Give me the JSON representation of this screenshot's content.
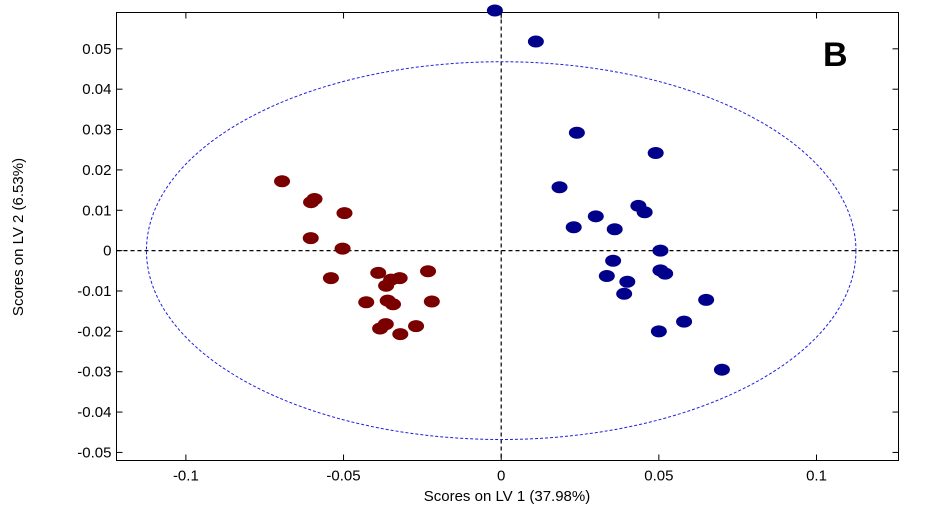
{
  "chart_data": {
    "type": "scatter",
    "xlabel": "Scores on LV 1 (37.98%)",
    "ylabel": "Scores on LV 2 (6.53%)",
    "panel_label": "B",
    "xlim": [
      -0.122,
      0.126
    ],
    "ylim": [
      -0.052,
      0.059
    ],
    "xticks": [
      -0.1,
      -0.05,
      0,
      0.05,
      0.1
    ],
    "xtick_labels": [
      "-0.1",
      "-0.05",
      "0",
      "0.05",
      "0.1"
    ],
    "yticks": [
      0.05,
      0.04,
      0.03,
      0.02,
      0.01,
      0,
      -0.01,
      -0.02,
      -0.03,
      -0.04,
      -0.05
    ],
    "ytick_labels": [
      "0.05",
      "0.04",
      "0.03",
      "0.02",
      "0.01",
      "0",
      "-0.01",
      "-0.02",
      "-0.03",
      "-0.04",
      "-0.05"
    ],
    "grid": false,
    "reference_lines": {
      "x": 0,
      "y": 0,
      "style": "dashed",
      "color": "#000000"
    },
    "confidence_ellipse": {
      "center": [
        0,
        0
      ],
      "rx": 0.1125,
      "ry": 0.0468,
      "color": "#1f1fe0",
      "style": "dashed"
    },
    "series": [
      {
        "color": "#7a0000",
        "points": [
          [
            -0.0695,
            0.0172
          ],
          [
            -0.0592,
            0.0128
          ],
          [
            -0.0603,
            0.012
          ],
          [
            -0.0604,
            0.0031
          ],
          [
            -0.0497,
            0.0093
          ],
          [
            -0.0503,
            0.0005
          ],
          [
            -0.054,
            -0.0068
          ],
          [
            -0.039,
            -0.0055
          ],
          [
            -0.0365,
            -0.0087
          ],
          [
            -0.0349,
            -0.0072
          ],
          [
            -0.0322,
            -0.0068
          ],
          [
            -0.0232,
            -0.0051
          ],
          [
            -0.0428,
            -0.0128
          ],
          [
            -0.036,
            -0.0124
          ],
          [
            -0.0343,
            -0.0133
          ],
          [
            -0.022,
            -0.0126
          ],
          [
            -0.0366,
            -0.0182
          ],
          [
            -0.0384,
            -0.0193
          ],
          [
            -0.027,
            -0.0187
          ],
          [
            -0.032,
            -0.0207
          ]
        ]
      },
      {
        "color": "#00008b",
        "points": [
          [
            -0.002,
            0.0595
          ],
          [
            0.011,
            0.0518
          ],
          [
            0.024,
            0.0292
          ],
          [
            0.049,
            0.0242
          ],
          [
            0.0185,
            0.0157
          ],
          [
            0.0435,
            0.0111
          ],
          [
            0.0455,
            0.0095
          ],
          [
            0.03,
            0.0085
          ],
          [
            0.023,
            0.0058
          ],
          [
            0.036,
            0.0053
          ],
          [
            0.0505,
            0.0
          ],
          [
            0.0355,
            -0.0025
          ],
          [
            0.0505,
            -0.0049
          ],
          [
            0.052,
            -0.0057
          ],
          [
            0.0335,
            -0.0063
          ],
          [
            0.04,
            -0.0077
          ],
          [
            0.039,
            -0.0107
          ],
          [
            0.065,
            -0.0122
          ],
          [
            0.058,
            -0.0176
          ],
          [
            0.05,
            -0.02
          ],
          [
            0.07,
            -0.0295
          ]
        ]
      }
    ]
  }
}
